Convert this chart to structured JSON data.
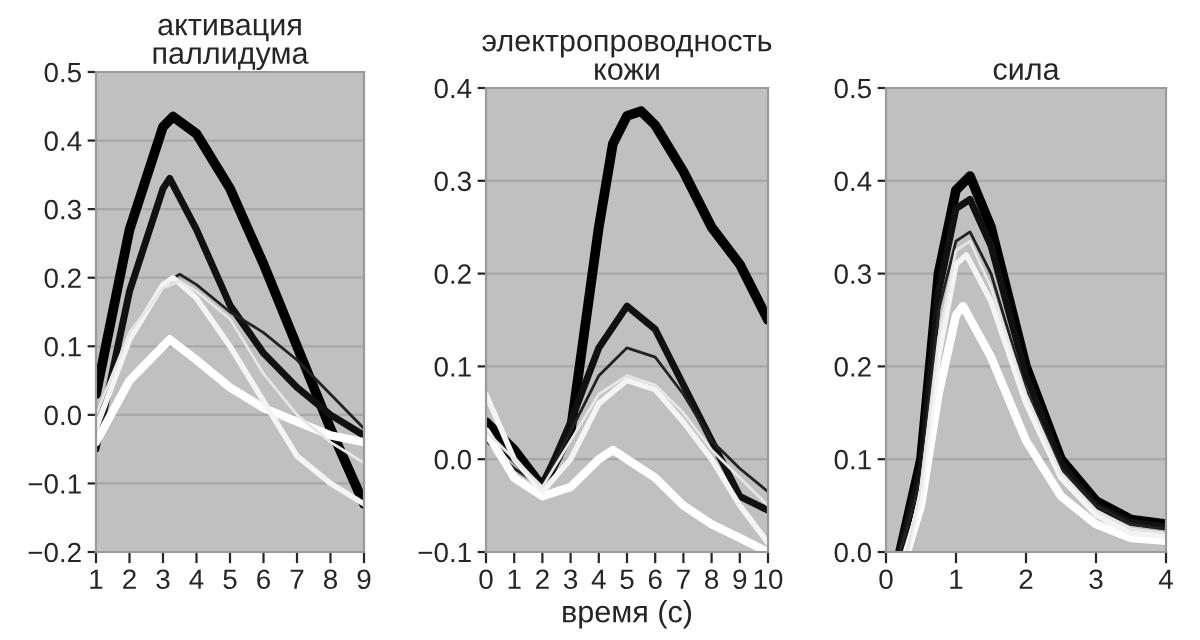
{
  "chart_data": [
    {
      "type": "line",
      "title": "активация\nпаллидума",
      "xlim": [
        1,
        9
      ],
      "xticks": [
        1,
        2,
        3,
        4,
        5,
        6,
        7,
        8,
        9
      ],
      "ylim": [
        -0.2,
        0.5
      ],
      "yticks": [
        {
          "value": -0.2,
          "label": "−0.2"
        },
        {
          "value": -0.1,
          "label": "−0.1"
        },
        {
          "value": 0,
          "label": "0.0"
        },
        0.1,
        0.2,
        0.3,
        0.4,
        0.5
      ],
      "grid": "y",
      "series": [
        {
          "color": "#000000",
          "x": [
            1,
            2,
            3,
            3.3,
            4,
            5,
            6,
            7,
            8,
            9
          ],
          "values": [
            0.03,
            0.27,
            0.42,
            0.435,
            0.41,
            0.33,
            0.22,
            0.1,
            -0.02,
            -0.13
          ]
        },
        {
          "color": "#111111",
          "x": [
            1,
            2,
            3,
            3.2,
            4,
            5,
            6,
            7,
            8,
            9
          ],
          "values": [
            -0.05,
            0.18,
            0.33,
            0.345,
            0.27,
            0.16,
            0.09,
            0.04,
            0.0,
            -0.03
          ]
        },
        {
          "color": "#222222",
          "x": [
            1,
            2,
            3,
            3.5,
            4,
            5,
            6,
            7,
            8,
            9
          ],
          "values": [
            0.0,
            0.11,
            0.19,
            0.205,
            0.19,
            0.15,
            0.12,
            0.08,
            0.03,
            -0.02
          ]
        },
        {
          "color": "#ffffff",
          "x": [
            1,
            2,
            3,
            3.2,
            4,
            5,
            6,
            7,
            8,
            9
          ],
          "values": [
            -0.04,
            0.05,
            0.1,
            0.11,
            0.08,
            0.04,
            0.01,
            -0.01,
            -0.03,
            -0.04
          ]
        },
        {
          "color": "#f4f4f4",
          "x": [
            1,
            2,
            3,
            3.3,
            4,
            5,
            6,
            7,
            8,
            9
          ],
          "values": [
            -0.02,
            0.11,
            0.19,
            0.2,
            0.17,
            0.1,
            0.02,
            -0.06,
            -0.1,
            -0.13
          ]
        },
        {
          "color": "#e6e6e6",
          "x": [
            1,
            2,
            3,
            3.5,
            4,
            5,
            6,
            7,
            8,
            9
          ],
          "values": [
            0.0,
            0.12,
            0.185,
            0.195,
            0.18,
            0.14,
            0.06,
            0.0,
            -0.04,
            -0.07
          ]
        }
      ]
    },
    {
      "type": "line",
      "title": "электропроводность\nкожи",
      "xlabel": "время (с)",
      "xlim": [
        0,
        10
      ],
      "xticks": [
        0,
        1,
        2,
        3,
        4,
        5,
        6,
        7,
        8,
        9,
        10
      ],
      "ylim": [
        -0.1,
        0.4
      ],
      "yticks": [
        {
          "value": -0.1,
          "label": "−0.1"
        },
        {
          "value": 0,
          "label": "0.0"
        },
        0.1,
        0.2,
        0.3,
        0.4
      ],
      "grid": "y",
      "series": [
        {
          "color": "#000000",
          "x": [
            0,
            1,
            2,
            3,
            4,
            4.5,
            5,
            5.5,
            6,
            7,
            8,
            9,
            10
          ],
          "values": [
            0.04,
            0.01,
            -0.03,
            0.03,
            0.25,
            0.34,
            0.37,
            0.375,
            0.36,
            0.31,
            0.25,
            0.21,
            0.15
          ]
        },
        {
          "color": "#111111",
          "x": [
            0,
            1,
            2,
            3,
            4,
            5,
            6,
            7,
            8,
            9,
            10
          ],
          "values": [
            0.03,
            0.0,
            -0.03,
            0.04,
            0.12,
            0.165,
            0.14,
            0.08,
            0.02,
            -0.04,
            -0.055
          ]
        },
        {
          "color": "#222222",
          "x": [
            0,
            1,
            2,
            3,
            4,
            5,
            6,
            7,
            8,
            9,
            10
          ],
          "values": [
            0.02,
            -0.01,
            -0.03,
            0.03,
            0.09,
            0.12,
            0.11,
            0.07,
            0.02,
            -0.01,
            -0.035
          ]
        },
        {
          "color": "#ffffff",
          "x": [
            0,
            1,
            2,
            3,
            4,
            4.5,
            5,
            6,
            7,
            8,
            9,
            10
          ],
          "values": [
            0.03,
            -0.02,
            -0.04,
            -0.03,
            0.0,
            0.01,
            0.0,
            -0.02,
            -0.05,
            -0.07,
            -0.085,
            -0.1
          ]
        },
        {
          "color": "#f4f4f4",
          "x": [
            0,
            1,
            2,
            3,
            4,
            5,
            6,
            7,
            8,
            9,
            10
          ],
          "values": [
            0.07,
            0.0,
            -0.035,
            0.0,
            0.06,
            0.085,
            0.075,
            0.04,
            0.0,
            -0.05,
            -0.09
          ]
        },
        {
          "color": "#e6e6e6",
          "x": [
            0,
            1,
            2,
            3,
            4,
            5,
            6,
            7,
            8,
            9,
            10
          ],
          "values": [
            0.03,
            0.0,
            -0.03,
            0.02,
            0.07,
            0.09,
            0.08,
            0.05,
            0.01,
            -0.02,
            -0.05
          ]
        }
      ]
    },
    {
      "type": "line",
      "title": "сила",
      "xlim": [
        0,
        4
      ],
      "xticks": [
        0,
        1,
        2,
        3,
        4
      ],
      "ylim": [
        0,
        0.5
      ],
      "yticks": [
        {
          "value": 0,
          "label": "0.0"
        },
        0.1,
        0.2,
        0.3,
        0.4,
        0.5
      ],
      "grid": "y",
      "series": [
        {
          "color": "#000000",
          "x": [
            0.2,
            0.5,
            0.75,
            1,
            1.2,
            1.5,
            2,
            2.5,
            3,
            3.5,
            4
          ],
          "values": [
            0.0,
            0.1,
            0.3,
            0.39,
            0.405,
            0.35,
            0.2,
            0.1,
            0.055,
            0.035,
            0.03
          ]
        },
        {
          "color": "#111111",
          "x": [
            0.2,
            0.5,
            0.75,
            1,
            1.2,
            1.5,
            2,
            2.5,
            3,
            3.5,
            4
          ],
          "values": [
            0.0,
            0.09,
            0.28,
            0.37,
            0.38,
            0.33,
            0.19,
            0.095,
            0.05,
            0.032,
            0.027
          ]
        },
        {
          "color": "#222222",
          "x": [
            0.2,
            0.5,
            0.75,
            1,
            1.2,
            1.5,
            2,
            2.5,
            3,
            3.5,
            4
          ],
          "values": [
            0.0,
            0.08,
            0.26,
            0.335,
            0.345,
            0.3,
            0.175,
            0.09,
            0.05,
            0.03,
            0.025
          ]
        },
        {
          "color": "#ffffff",
          "x": [
            0.3,
            0.5,
            0.75,
            1,
            1.1,
            1.5,
            2,
            2.5,
            3,
            3.5,
            4
          ],
          "values": [
            0.0,
            0.05,
            0.17,
            0.255,
            0.265,
            0.21,
            0.12,
            0.06,
            0.03,
            0.015,
            0.012
          ]
        },
        {
          "color": "#f4f4f4",
          "x": [
            0.3,
            0.5,
            0.75,
            1,
            1.15,
            1.5,
            2,
            2.5,
            3,
            3.5,
            4
          ],
          "values": [
            0.0,
            0.06,
            0.21,
            0.31,
            0.32,
            0.27,
            0.16,
            0.08,
            0.04,
            0.02,
            0.018
          ]
        },
        {
          "color": "#e6e6e6",
          "x": [
            0.3,
            0.5,
            0.75,
            1,
            1.2,
            1.5,
            2,
            2.5,
            3,
            3.5,
            4
          ],
          "values": [
            0.0,
            0.07,
            0.23,
            0.325,
            0.335,
            0.285,
            0.17,
            0.085,
            0.045,
            0.025,
            0.02
          ]
        }
      ]
    }
  ]
}
